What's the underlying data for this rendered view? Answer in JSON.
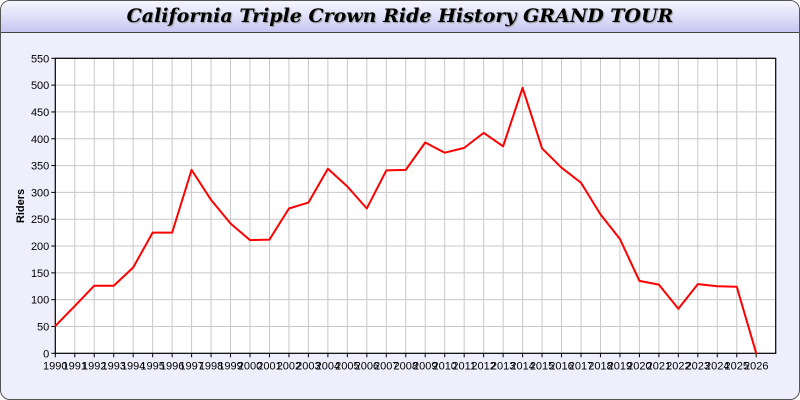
{
  "chart_data": {
    "type": "line",
    "title": "California Triple Crown Ride History GRAND TOUR",
    "xlabel": "",
    "ylabel": "Riders",
    "xlim": [
      1990,
      2027
    ],
    "ylim": [
      0,
      550
    ],
    "yticks": [
      0,
      50,
      100,
      150,
      200,
      250,
      300,
      350,
      400,
      450,
      500,
      550
    ],
    "grid": true,
    "line_color": "#ff0000",
    "x": [
      1990,
      1991,
      1992,
      1993,
      1994,
      1995,
      1996,
      1997,
      1998,
      1999,
      2000,
      2001,
      2002,
      2003,
      2004,
      2005,
      2006,
      2007,
      2008,
      2009,
      2010,
      2011,
      2012,
      2013,
      2014,
      2015,
      2016,
      2017,
      2018,
      2019,
      2020,
      2021,
      2022,
      2023,
      2024,
      2025,
      2026
    ],
    "series": [
      {
        "values": [
          51,
          88,
          126,
          126,
          160,
          225,
          225,
          342,
          286,
          242,
          211,
          212,
          270,
          281,
          344,
          311,
          270,
          341,
          342,
          393,
          374,
          383,
          411,
          386,
          495,
          382,
          346,
          318,
          259,
          213,
          135,
          128,
          83,
          129,
          125,
          124,
          0
        ]
      }
    ]
  }
}
